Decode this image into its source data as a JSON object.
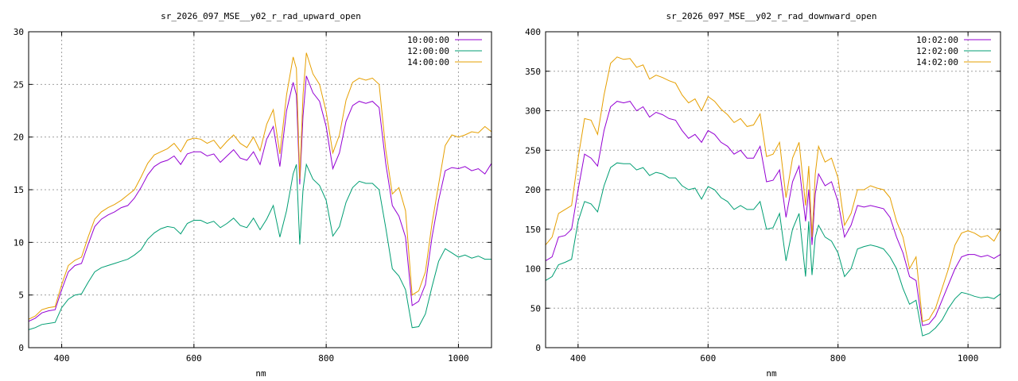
{
  "chart_data": [
    {
      "type": "line",
      "title": "sr_2026_097_MSE__y02_r_rad_upward_open",
      "xlabel": "nm",
      "ylabel": "",
      "xlim": [
        350,
        1050
      ],
      "ylim": [
        0,
        30
      ],
      "xticks": [
        400,
        600,
        800,
        1000
      ],
      "yticks": [
        0,
        5,
        10,
        15,
        20,
        25,
        30
      ],
      "grid": true,
      "legend": "top-right",
      "x": [
        350,
        360,
        370,
        380,
        390,
        400,
        410,
        420,
        430,
        440,
        450,
        460,
        470,
        480,
        490,
        500,
        510,
        520,
        530,
        540,
        550,
        560,
        570,
        580,
        590,
        600,
        610,
        620,
        630,
        640,
        650,
        660,
        670,
        680,
        690,
        700,
        710,
        720,
        730,
        740,
        750,
        755,
        760,
        765,
        770,
        780,
        790,
        800,
        810,
        820,
        830,
        840,
        850,
        860,
        870,
        880,
        890,
        900,
        910,
        920,
        930,
        940,
        950,
        960,
        970,
        980,
        990,
        1000,
        1010,
        1020,
        1030,
        1040,
        1050
      ],
      "series": [
        {
          "name": "10:00:00",
          "color": "#9400d3",
          "values": [
            2.5,
            2.8,
            3.3,
            3.5,
            3.6,
            5.5,
            7.2,
            7.8,
            8.0,
            9.8,
            11.5,
            12.2,
            12.6,
            12.9,
            13.3,
            13.5,
            14.2,
            15.2,
            16.4,
            17.2,
            17.6,
            17.8,
            18.2,
            17.4,
            18.4,
            18.6,
            18.6,
            18.2,
            18.4,
            17.6,
            18.2,
            18.8,
            18.0,
            17.8,
            18.6,
            17.4,
            19.8,
            21.0,
            17.2,
            22.5,
            25.2,
            24.0,
            15.5,
            22.0,
            25.8,
            24.2,
            23.4,
            21.0,
            17.0,
            18.5,
            21.5,
            23.0,
            23.4,
            23.2,
            23.4,
            22.8,
            17.5,
            13.5,
            12.5,
            10.5,
            4.0,
            4.4,
            6.0,
            10.5,
            14.0,
            16.8,
            17.1,
            17.0,
            17.2,
            16.8,
            17.0,
            16.5,
            17.5
          ]
        },
        {
          "name": "12:00:00",
          "color": "#009e73",
          "values": [
            1.7,
            1.9,
            2.2,
            2.3,
            2.4,
            3.8,
            4.6,
            5.0,
            5.1,
            6.2,
            7.2,
            7.6,
            7.8,
            8.0,
            8.2,
            8.4,
            8.8,
            9.3,
            10.3,
            10.9,
            11.3,
            11.5,
            11.4,
            10.8,
            11.8,
            12.1,
            12.1,
            11.8,
            12.0,
            11.4,
            11.8,
            12.3,
            11.6,
            11.4,
            12.3,
            11.2,
            12.2,
            13.5,
            10.5,
            13.0,
            16.5,
            17.4,
            9.8,
            15.0,
            17.4,
            16.0,
            15.4,
            14.0,
            10.6,
            11.5,
            13.8,
            15.2,
            15.8,
            15.6,
            15.6,
            15.0,
            11.4,
            7.5,
            6.8,
            5.5,
            1.9,
            2.0,
            3.2,
            5.8,
            8.2,
            9.4,
            9.0,
            8.6,
            8.8,
            8.5,
            8.7,
            8.4,
            8.4
          ]
        },
        {
          "name": "14:00:00",
          "color": "#e69f00",
          "values": [
            2.7,
            3.0,
            3.6,
            3.8,
            3.9,
            6.0,
            7.8,
            8.3,
            8.6,
            10.5,
            12.2,
            12.9,
            13.3,
            13.6,
            14.0,
            14.5,
            15.0,
            16.2,
            17.5,
            18.3,
            18.6,
            18.9,
            19.4,
            18.6,
            19.7,
            19.9,
            19.8,
            19.4,
            19.7,
            18.9,
            19.6,
            20.2,
            19.4,
            19.0,
            20.0,
            18.7,
            21.2,
            22.6,
            18.4,
            24.0,
            27.6,
            26.5,
            16.0,
            24.0,
            28.0,
            26.0,
            25.0,
            22.4,
            18.5,
            20.2,
            23.5,
            25.2,
            25.6,
            25.4,
            25.6,
            25.0,
            18.8,
            14.6,
            15.2,
            13.0,
            5.0,
            5.4,
            7.2,
            11.8,
            15.5,
            19.2,
            20.2,
            20.0,
            20.2,
            20.5,
            20.4,
            21.0,
            20.5
          ]
        }
      ]
    },
    {
      "type": "line",
      "title": "sr_2026_097_MSE__y02_r_rad_downward_open",
      "xlabel": "nm",
      "ylabel": "",
      "xlim": [
        350,
        1050
      ],
      "ylim": [
        0,
        400
      ],
      "xticks": [
        400,
        600,
        800,
        1000
      ],
      "yticks": [
        0,
        50,
        100,
        150,
        200,
        250,
        300,
        350,
        400
      ],
      "grid": true,
      "legend": "top-right",
      "x": [
        350,
        360,
        370,
        380,
        390,
        400,
        410,
        420,
        430,
        440,
        450,
        460,
        470,
        480,
        490,
        500,
        510,
        520,
        530,
        540,
        550,
        560,
        570,
        580,
        590,
        600,
        610,
        620,
        630,
        640,
        650,
        660,
        670,
        680,
        690,
        700,
        710,
        720,
        730,
        740,
        750,
        755,
        760,
        765,
        770,
        780,
        790,
        800,
        810,
        820,
        830,
        840,
        850,
        860,
        870,
        880,
        890,
        900,
        910,
        920,
        930,
        940,
        950,
        960,
        970,
        980,
        990,
        1000,
        1010,
        1020,
        1030,
        1040,
        1050
      ],
      "series": [
        {
          "name": "10:02:00",
          "color": "#9400d3",
          "values": [
            110,
            115,
            140,
            142,
            150,
            200,
            245,
            240,
            230,
            275,
            305,
            312,
            310,
            312,
            300,
            305,
            292,
            298,
            295,
            290,
            288,
            275,
            265,
            270,
            260,
            275,
            270,
            260,
            255,
            245,
            250,
            240,
            240,
            255,
            210,
            212,
            225,
            165,
            210,
            230,
            160,
            200,
            130,
            195,
            220,
            205,
            210,
            185,
            140,
            155,
            180,
            178,
            180,
            178,
            176,
            165,
            140,
            120,
            90,
            85,
            28,
            30,
            40,
            60,
            80,
            100,
            115,
            118,
            118,
            115,
            117,
            113,
            118
          ]
        },
        {
          "name": "12:02:00",
          "color": "#009e73",
          "values": [
            85,
            90,
            105,
            108,
            112,
            160,
            185,
            182,
            172,
            205,
            228,
            234,
            233,
            233,
            225,
            228,
            218,
            222,
            220,
            215,
            215,
            205,
            200,
            202,
            188,
            204,
            200,
            190,
            185,
            175,
            180,
            175,
            175,
            185,
            150,
            152,
            170,
            110,
            150,
            170,
            90,
            160,
            92,
            140,
            155,
            140,
            135,
            120,
            90,
            100,
            125,
            128,
            130,
            128,
            125,
            115,
            100,
            75,
            55,
            60,
            15,
            18,
            25,
            35,
            50,
            62,
            70,
            68,
            65,
            63,
            64,
            62,
            68
          ]
        },
        {
          "name": "14:02:00",
          "color": "#e69f00",
          "values": [
            130,
            140,
            170,
            175,
            180,
            240,
            290,
            288,
            270,
            320,
            360,
            368,
            365,
            366,
            355,
            358,
            340,
            345,
            342,
            338,
            335,
            320,
            310,
            315,
            300,
            318,
            312,
            302,
            295,
            285,
            290,
            280,
            282,
            296,
            242,
            245,
            260,
            190,
            240,
            260,
            180,
            230,
            140,
            220,
            255,
            235,
            240,
            215,
            155,
            170,
            200,
            200,
            205,
            202,
            200,
            190,
            160,
            140,
            100,
            115,
            33,
            36,
            50,
            75,
            100,
            130,
            145,
            148,
            145,
            140,
            142,
            135,
            150
          ]
        }
      ]
    }
  ]
}
